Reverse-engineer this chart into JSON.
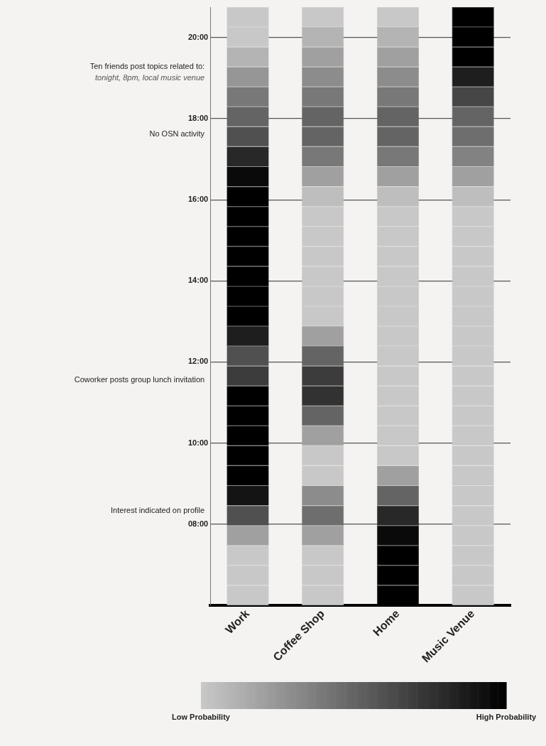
{
  "chart_data": {
    "type": "heatmap",
    "categories": [
      "Work",
      "Coffee Shop",
      "Home",
      "Music Venue"
    ],
    "ylim": [
      6,
      20.75
    ],
    "yticks": [
      {
        "value": 8,
        "label": "08:00"
      },
      {
        "value": 10,
        "label": "10:00"
      },
      {
        "value": 12,
        "label": "12:00"
      },
      {
        "value": 14,
        "label": "14:00"
      },
      {
        "value": 16,
        "label": "16:00"
      },
      {
        "value": 18,
        "label": "18:00"
      },
      {
        "value": 20,
        "label": "20:00"
      }
    ],
    "grid": "y",
    "cells": [
      [
        0,
        0,
        0,
        1
      ],
      [
        0,
        0.1,
        0.1,
        1
      ],
      [
        0.1,
        0.2,
        0.2,
        1
      ],
      [
        0.25,
        0.3,
        0.3,
        0.85
      ],
      [
        0.4,
        0.4,
        0.4,
        0.65
      ],
      [
        0.5,
        0.5,
        0.5,
        0.5
      ],
      [
        0.6,
        0.5,
        0.5,
        0.45
      ],
      [
        0.8,
        0.4,
        0.4,
        0.35
      ],
      [
        0.95,
        0.2,
        0.2,
        0.2
      ],
      [
        1,
        0.05,
        0.05,
        0.05
      ],
      [
        1,
        0,
        0,
        0
      ],
      [
        1,
        0,
        0,
        0
      ],
      [
        1,
        0,
        0,
        0
      ],
      [
        1,
        0,
        0,
        0
      ],
      [
        1,
        0,
        0,
        0
      ],
      [
        1,
        0,
        0,
        0
      ],
      [
        0.85,
        0.2,
        0,
        0
      ],
      [
        0.6,
        0.5,
        0,
        0
      ],
      [
        0.7,
        0.7,
        0,
        0
      ],
      [
        1,
        0.75,
        0,
        0
      ],
      [
        1,
        0.5,
        0,
        0
      ],
      [
        1,
        0.2,
        0,
        0
      ],
      [
        1,
        0,
        0,
        0
      ],
      [
        1,
        0,
        0.2,
        0
      ],
      [
        0.9,
        0.3,
        0.5,
        0
      ],
      [
        0.6,
        0.45,
        0.8,
        0
      ],
      [
        0.2,
        0.2,
        0.95,
        0
      ],
      [
        0,
        0,
        1,
        0
      ],
      [
        0,
        0,
        1,
        0
      ],
      [
        0,
        0,
        1,
        0
      ]
    ],
    "clim": [
      0,
      1
    ],
    "cticks": [
      {
        "value": 0,
        "label": "Low Probability"
      },
      {
        "value": 1,
        "label": "High Probability"
      }
    ],
    "annotations": [
      "Ten friends post topics related to:\ntonight, 8pm, local music venue",
      "No OSN activity",
      "Coworker posts group lunch invitation",
      "Interest indicated on profile"
    ]
  }
}
